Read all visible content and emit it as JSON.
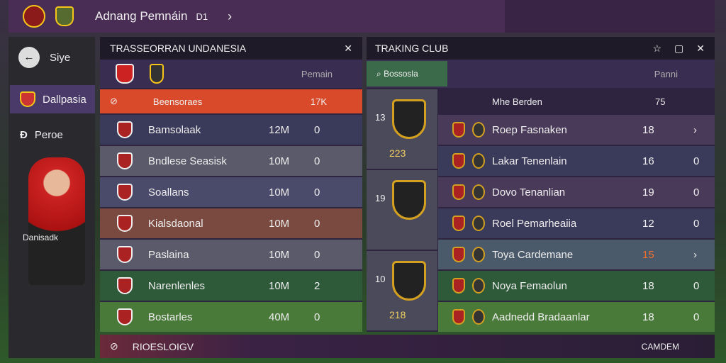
{
  "header": {
    "title": "Adnang Pemnáin",
    "badge": "D1"
  },
  "sidebar": {
    "items": [
      "Siye",
      "Dallpasia",
      "Peroe"
    ],
    "player": "Danisadk"
  },
  "left_panel": {
    "title": "TRASSEORRAN UNDANESIA",
    "column": "Pemain",
    "highlight": {
      "name": "Beensoraes",
      "value": "17K"
    },
    "rows": [
      [
        "Bamsolaak",
        "12M",
        "0"
      ],
      [
        "Bndlese Seasisk",
        "10M",
        "0"
      ],
      [
        "Soallans",
        "10M",
        "0"
      ],
      [
        "Kialsdaonal",
        "10M",
        "0"
      ],
      [
        "Paslaina",
        "10M",
        "0"
      ],
      [
        "Narenlenles",
        "10M",
        "2"
      ],
      [
        "Bostarles",
        "40M",
        "0"
      ]
    ]
  },
  "right_panel": {
    "title": "TRAKING CLUB",
    "tab": "Bossosla",
    "column": "Panni",
    "clubs": [
      [
        "13",
        "223"
      ],
      [
        "19",
        ""
      ],
      [
        "10",
        "218"
      ]
    ],
    "header_row": {
      "name": "Mhe Berden",
      "value": "75"
    },
    "rows": [
      [
        "Roep Fasnaken",
        "18",
        "›"
      ],
      [
        "Lakar Tenenlain",
        "16",
        "0"
      ],
      [
        "Dovo Tenanlian",
        "19",
        "0"
      ],
      [
        "Roel Pemarheaiia",
        "12",
        "0"
      ],
      [
        "Toya Cardemane",
        "15",
        "›"
      ],
      [
        "Noya Femaolun",
        "18",
        "0"
      ],
      [
        "Aadnedd Bradaanlar",
        "18",
        "0"
      ]
    ]
  },
  "footer": {
    "left": "RIOESLOIGV",
    "right": "CAMDEM"
  }
}
